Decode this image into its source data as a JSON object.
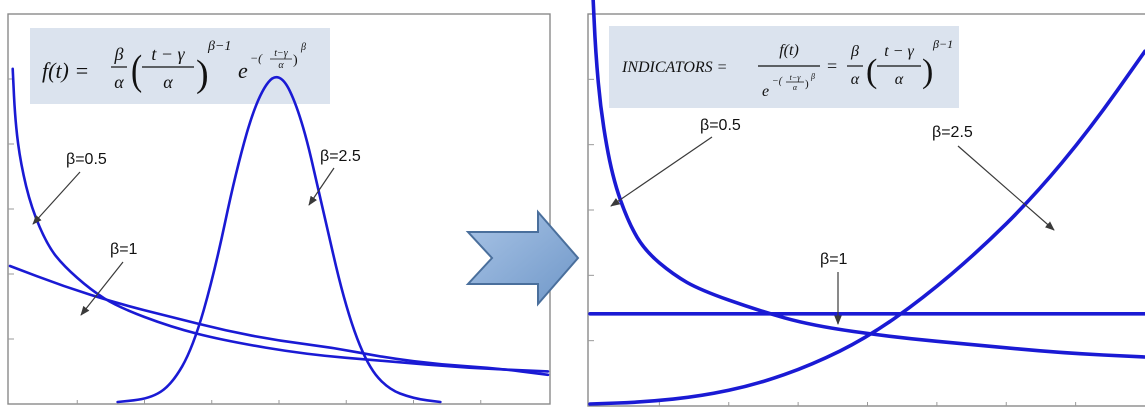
{
  "chart_data": [
    {
      "type": "line",
      "formula": {
        "lhs": "f(t) =",
        "frac1_num": "β",
        "frac1_den": "α",
        "frac2_num": "t − γ",
        "frac2_den": "α",
        "power": "β−1",
        "exp_base": "e",
        "exp_power": "−(",
        "exp_inner_num": "t−γ",
        "exp_inner_den": "α",
        "exp_outer_power": "β"
      },
      "series": [
        {
          "name": "β=0.5",
          "x": [
            0.005,
            0.01,
            0.02,
            0.04,
            0.07,
            0.1,
            0.15,
            0.2,
            0.3,
            0.4,
            0.55,
            0.7,
            0.85,
            1.0
          ],
          "y": [
            0.98,
            0.82,
            0.7,
            0.57,
            0.46,
            0.4,
            0.33,
            0.28,
            0.22,
            0.18,
            0.14,
            0.12,
            0.1,
            0.09
          ]
        },
        {
          "name": "β=1",
          "x": [
            0,
            0.1,
            0.2,
            0.3,
            0.4,
            0.5,
            0.6,
            0.7,
            0.8,
            0.9,
            1.0
          ],
          "y": [
            0.4,
            0.34,
            0.29,
            0.25,
            0.21,
            0.18,
            0.16,
            0.13,
            0.11,
            0.1,
            0.08
          ]
        },
        {
          "name": "β=2.5",
          "x": [
            0.2,
            0.26,
            0.3,
            0.34,
            0.38,
            0.42,
            0.46,
            0.5,
            0.54,
            0.58,
            0.62,
            0.66,
            0.7,
            0.75,
            0.8
          ],
          "y": [
            0.0,
            0.01,
            0.05,
            0.16,
            0.38,
            0.68,
            0.9,
            0.98,
            0.85,
            0.58,
            0.3,
            0.12,
            0.04,
            0.01,
            0.0
          ]
        }
      ],
      "annotations": [
        "β=0.5",
        "β=1",
        "β=2.5"
      ]
    },
    {
      "type": "line",
      "formula": {
        "lhs": "INDICATORS =",
        "frac_num": "f(t)",
        "frac_den_base": "e",
        "frac_den_power": "−(",
        "frac_den_inner_num": "t−γ",
        "frac_den_inner_den": "α",
        "frac_den_outer_power": "β",
        "eq": "=",
        "frac1_num": "β",
        "frac1_den": "α",
        "frac2_num": "t − γ",
        "frac2_den": "α",
        "power": "β−1"
      },
      "series": [
        {
          "name": "β=0.5",
          "x": [
            0.005,
            0.01,
            0.02,
            0.04,
            0.07,
            0.1,
            0.15,
            0.2,
            0.3,
            0.4,
            0.55,
            0.7,
            0.85,
            1.0
          ],
          "y": [
            1.05,
            0.9,
            0.74,
            0.58,
            0.46,
            0.39,
            0.33,
            0.29,
            0.24,
            0.2,
            0.17,
            0.15,
            0.13,
            0.12
          ]
        },
        {
          "name": "β=1",
          "x": [
            0,
            1.0
          ],
          "y": [
            0.23,
            0.23
          ]
        },
        {
          "name": "β=2.5",
          "x": [
            0,
            0.1,
            0.2,
            0.3,
            0.4,
            0.5,
            0.6,
            0.7,
            0.8,
            0.9,
            1.0
          ],
          "y": [
            0.0,
            0.005,
            0.02,
            0.05,
            0.1,
            0.17,
            0.27,
            0.39,
            0.53,
            0.7,
            0.9
          ]
        }
      ],
      "annotations": [
        "β=0.5",
        "β=1",
        "β=2.5"
      ]
    }
  ],
  "colors": {
    "curve": "#1a1ad4",
    "formula_bg": "#dbe3ee",
    "arrow_fill": "#7fa6d6",
    "arrow_stroke": "#4a6f9c"
  },
  "transition_arrow": "right-arrow-icon"
}
